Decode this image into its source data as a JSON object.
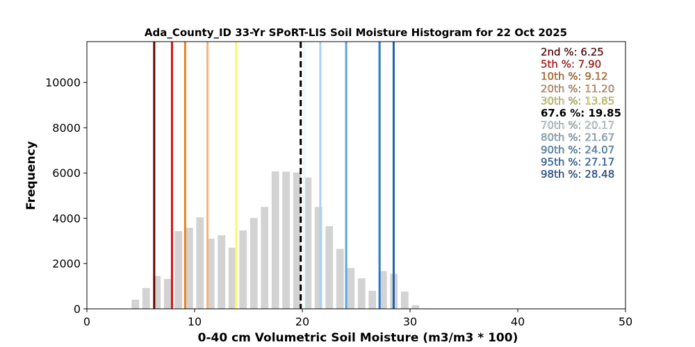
{
  "chart_data": {
    "type": "bar",
    "title": "Ada_County_ID 33-Yr SPoRT-LIS Soil Moisture Histogram for 22 Oct 2025",
    "xlabel": "0-40 cm Volumetric Soil Moisture (m3/m3 * 100)",
    "ylabel": "Frequency",
    "xlim": [
      0,
      50
    ],
    "ylim": [
      0,
      11800
    ],
    "xticks": [
      0,
      10,
      20,
      30,
      40,
      50
    ],
    "yticks": [
      0,
      2000,
      4000,
      6000,
      8000,
      10000
    ],
    "grid": false,
    "bar_color": "#d3d3d3",
    "bins": {
      "x": [
        4.5,
        5.5,
        6.5,
        7.5,
        8.5,
        9.5,
        10.5,
        11.5,
        12.5,
        13.5,
        14.5,
        15.5,
        16.5,
        17.5,
        18.5,
        19.5,
        20.5,
        21.5,
        22.5,
        23.5,
        24.5,
        25.5,
        26.5,
        27.5,
        28.5,
        29.5,
        30.5,
        31.5
      ],
      "values": [
        400,
        920,
        1450,
        1320,
        3430,
        3580,
        4040,
        3100,
        3250,
        2700,
        3460,
        4010,
        4500,
        6070,
        6060,
        6020,
        5800,
        4500,
        3650,
        2650,
        1800,
        1350,
        800,
        1670,
        1550,
        760,
        160,
        20
      ]
    },
    "percentiles": [
      {
        "label": "2nd %: 6.25",
        "value": 6.25,
        "color": "#6b0000",
        "style": "solid",
        "bold": false
      },
      {
        "label": "5th %: 7.90",
        "value": 7.9,
        "color": "#dd1111",
        "style": "solid",
        "bold": false
      },
      {
        "label": "10th %: 9.12",
        "value": 9.12,
        "color": "#e8821e",
        "style": "solid",
        "bold": false
      },
      {
        "label": "20th %: 11.20",
        "value": 11.2,
        "color": "#f5b27a",
        "style": "solid",
        "bold": false
      },
      {
        "label": "30th %: 13.85",
        "value": 13.85,
        "color": "#fbfb6a",
        "style": "solid",
        "bold": false
      },
      {
        "label": "67.6 %: 19.85",
        "value": 19.85,
        "color": "#000000",
        "style": "dashed",
        "bold": true
      },
      {
        "label": "70th %: 20.17",
        "value": 20.17,
        "color": "#e6fbfb",
        "style": "solid",
        "bold": false
      },
      {
        "label": "80th %: 21.67",
        "value": 21.67,
        "color": "#a9d2f2",
        "style": "solid",
        "bold": false
      },
      {
        "label": "90th %: 24.07",
        "value": 24.07,
        "color": "#5aa6e2",
        "style": "solid",
        "bold": false
      },
      {
        "label": "95th %: 27.17",
        "value": 27.17,
        "color": "#2b78d0",
        "style": "solid",
        "bold": false
      },
      {
        "label": "98th %: 28.48",
        "value": 28.48,
        "color": "#1e5fb0",
        "style": "solid",
        "bold": false
      }
    ]
  }
}
